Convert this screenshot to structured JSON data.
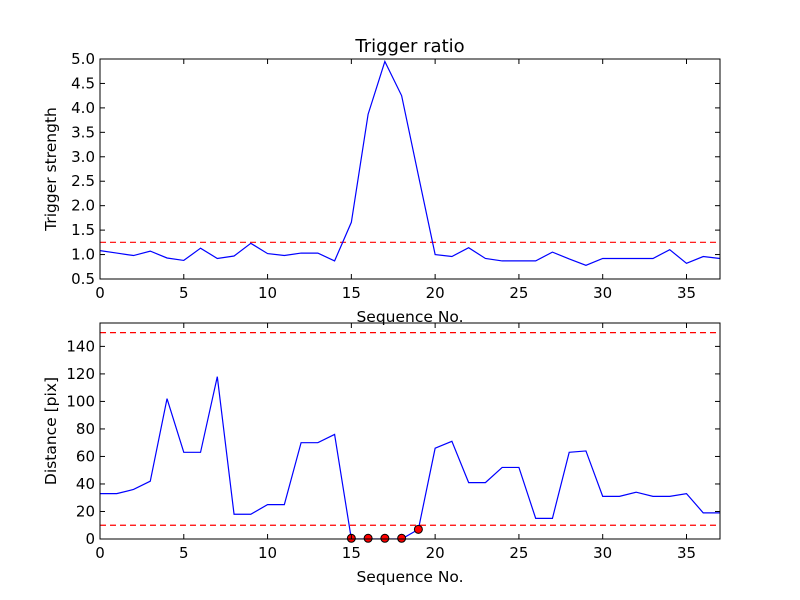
{
  "chart_data": [
    {
      "type": "line",
      "title": "Trigger ratio",
      "xlabel": "Sequence No.",
      "ylabel": "Trigger strength",
      "xlim": [
        0,
        37
      ],
      "ylim": [
        0.5,
        5.0
      ],
      "xticks": [
        0,
        5,
        10,
        15,
        20,
        25,
        30,
        35
      ],
      "yticks": [
        0.5,
        1.0,
        1.5,
        2.0,
        2.5,
        3.0,
        3.5,
        4.0,
        4.5,
        5.0
      ],
      "xtick_labels": [
        "0",
        "5",
        "10",
        "15",
        "20",
        "25",
        "30",
        "35"
      ],
      "ytick_labels": [
        "0.5",
        "1.0",
        "1.5",
        "2.0",
        "2.5",
        "3.0",
        "3.5",
        "4.0",
        "4.5",
        "5.0"
      ],
      "grid": false,
      "series": [
        {
          "color": "#0000ff",
          "x": [
            0,
            1,
            2,
            3,
            4,
            5,
            6,
            7,
            8,
            9,
            10,
            11,
            12,
            13,
            14,
            15,
            16,
            17,
            18,
            19,
            20,
            21,
            22,
            23,
            24,
            25,
            26,
            27,
            28,
            29,
            30,
            31,
            32,
            33,
            34,
            35,
            36,
            37
          ],
          "y": [
            1.08,
            1.03,
            0.98,
            1.07,
            0.93,
            0.88,
            1.13,
            0.92,
            0.97,
            1.23,
            1.02,
            0.98,
            1.03,
            1.03,
            0.87,
            1.66,
            3.87,
            4.95,
            4.25,
            2.62,
            1.0,
            0.96,
            1.14,
            0.92,
            0.87,
            0.87,
            0.87,
            1.05,
            0.91,
            0.78,
            0.92,
            0.92,
            0.92,
            0.92,
            1.1,
            0.82,
            0.96,
            0.92
          ]
        }
      ],
      "reference_lines": [
        {
          "orientation": "horizontal",
          "y": 1.25,
          "color": "#ff0000",
          "style": "dashed"
        }
      ]
    },
    {
      "type": "line",
      "title": "",
      "xlabel": "Sequence No.",
      "ylabel": "Distance [pix]",
      "xlim": [
        0,
        37
      ],
      "ylim": [
        0,
        157
      ],
      "xticks": [
        0,
        5,
        10,
        15,
        20,
        25,
        30,
        35
      ],
      "yticks": [
        0,
        20,
        40,
        60,
        80,
        100,
        120,
        140
      ],
      "xtick_labels": [
        "0",
        "5",
        "10",
        "15",
        "20",
        "25",
        "30",
        "35"
      ],
      "ytick_labels": [
        "0",
        "20",
        "40",
        "60",
        "80",
        "100",
        "120",
        "140"
      ],
      "grid": false,
      "series": [
        {
          "color": "#0000ff",
          "x": [
            0,
            1,
            2,
            3,
            4,
            5,
            6,
            7,
            8,
            9,
            10,
            11,
            12,
            13,
            14,
            15,
            16,
            17,
            18,
            19,
            20,
            21,
            22,
            23,
            24,
            25,
            26,
            27,
            28,
            29,
            30,
            31,
            32,
            33,
            34,
            35,
            36,
            37
          ],
          "y": [
            33,
            33,
            36,
            42,
            102,
            63,
            63,
            118,
            18,
            18,
            25,
            25,
            70,
            70,
            76,
            0,
            0,
            0,
            0,
            7,
            66,
            71,
            41,
            41,
            52,
            52,
            15,
            15,
            63,
            64,
            31,
            31,
            34,
            31,
            31,
            33,
            19,
            19
          ]
        }
      ],
      "markers": {
        "color": "#ff0000",
        "x": [
          15,
          16,
          17,
          18,
          19
        ],
        "y": [
          0.5,
          0.5,
          0.5,
          0.5,
          7
        ]
      },
      "reference_lines": [
        {
          "orientation": "horizontal",
          "y": 150,
          "color": "#ff0000",
          "style": "dashed"
        },
        {
          "orientation": "horizontal",
          "y": 10,
          "color": "#ff0000",
          "style": "dashed"
        }
      ]
    }
  ]
}
